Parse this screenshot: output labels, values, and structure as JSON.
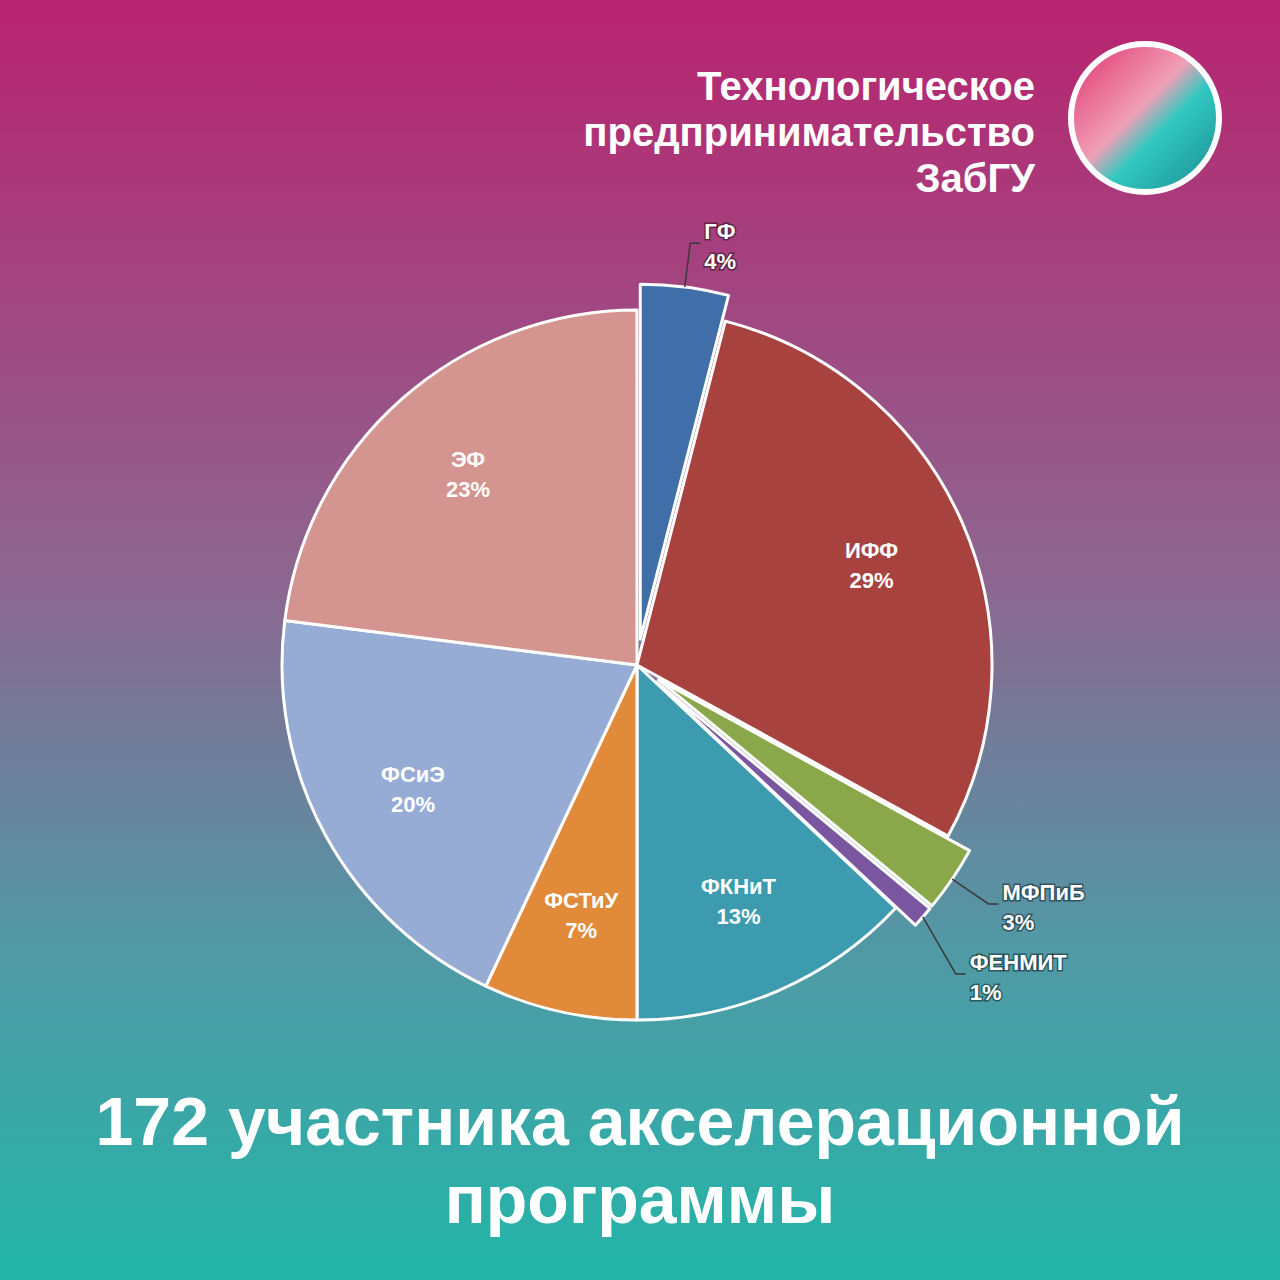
{
  "chart_data": {
    "type": "pie",
    "title": "Технологическое предпринимательство ЗабГУ",
    "annotation": "172 участника акселерационной программы",
    "categories": [
      "ГФ",
      "ИФФ",
      "МФПиБ",
      "ФЕНМИТ",
      "ФКНиТ",
      "ФСТиУ",
      "ФСиЭ",
      "ЭФ"
    ],
    "values": [
      4,
      29,
      3,
      1,
      13,
      7,
      20,
      23
    ],
    "value_labels": [
      "4%",
      "29%",
      "3%",
      "1%",
      "13%",
      "7%",
      "20%",
      "23%"
    ],
    "colors": [
      "#3f6ea8",
      "#a8423f",
      "#8aa84a",
      "#7a55a0",
      "#3d9bb0",
      "#e08a3a",
      "#96acd4",
      "#d4948f"
    ],
    "data_labels": true
  }
}
